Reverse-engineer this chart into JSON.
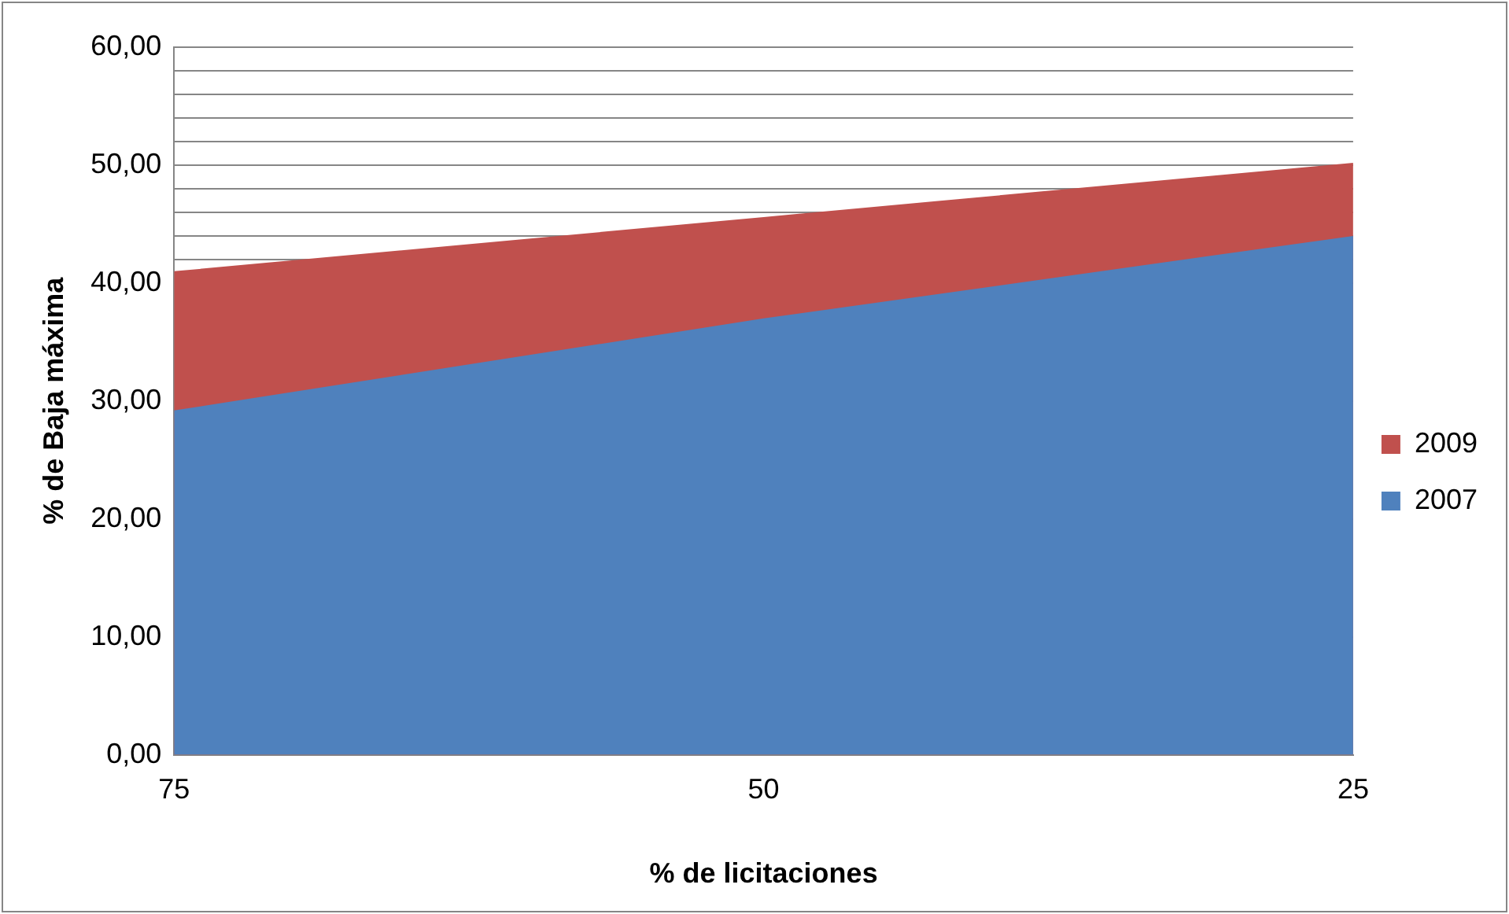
{
  "chart_data": {
    "type": "area",
    "xlabel": "% de licitaciones",
    "ylabel": "% de Baja máxima",
    "categories": [
      "75",
      "50",
      "25"
    ],
    "series": [
      {
        "name": "2009",
        "color": "#c0504d",
        "values": [
          41.0,
          45.6,
          50.2
        ]
      },
      {
        "name": "2007",
        "color": "#4f81bd",
        "values": [
          29.2,
          37.0,
          44.0
        ]
      }
    ],
    "ylim": [
      0,
      60
    ],
    "yticks": [
      {
        "value": 0,
        "label": "0,00"
      },
      {
        "value": 10,
        "label": "10,00"
      },
      {
        "value": 20,
        "label": "20,00"
      },
      {
        "value": 30,
        "label": "30,00"
      },
      {
        "value": 40,
        "label": "40,00"
      },
      {
        "value": 42,
        "label": null
      },
      {
        "value": 44,
        "label": null
      },
      {
        "value": 46,
        "label": null
      },
      {
        "value": 48,
        "label": null
      },
      {
        "value": 50,
        "label": "50,00"
      },
      {
        "value": 52,
        "label": null
      },
      {
        "value": 54,
        "label": null
      },
      {
        "value": 56,
        "label": null
      },
      {
        "value": 58,
        "label": null
      },
      {
        "value": 60,
        "label": "60,00"
      }
    ],
    "grid": "y",
    "legend": "right"
  }
}
